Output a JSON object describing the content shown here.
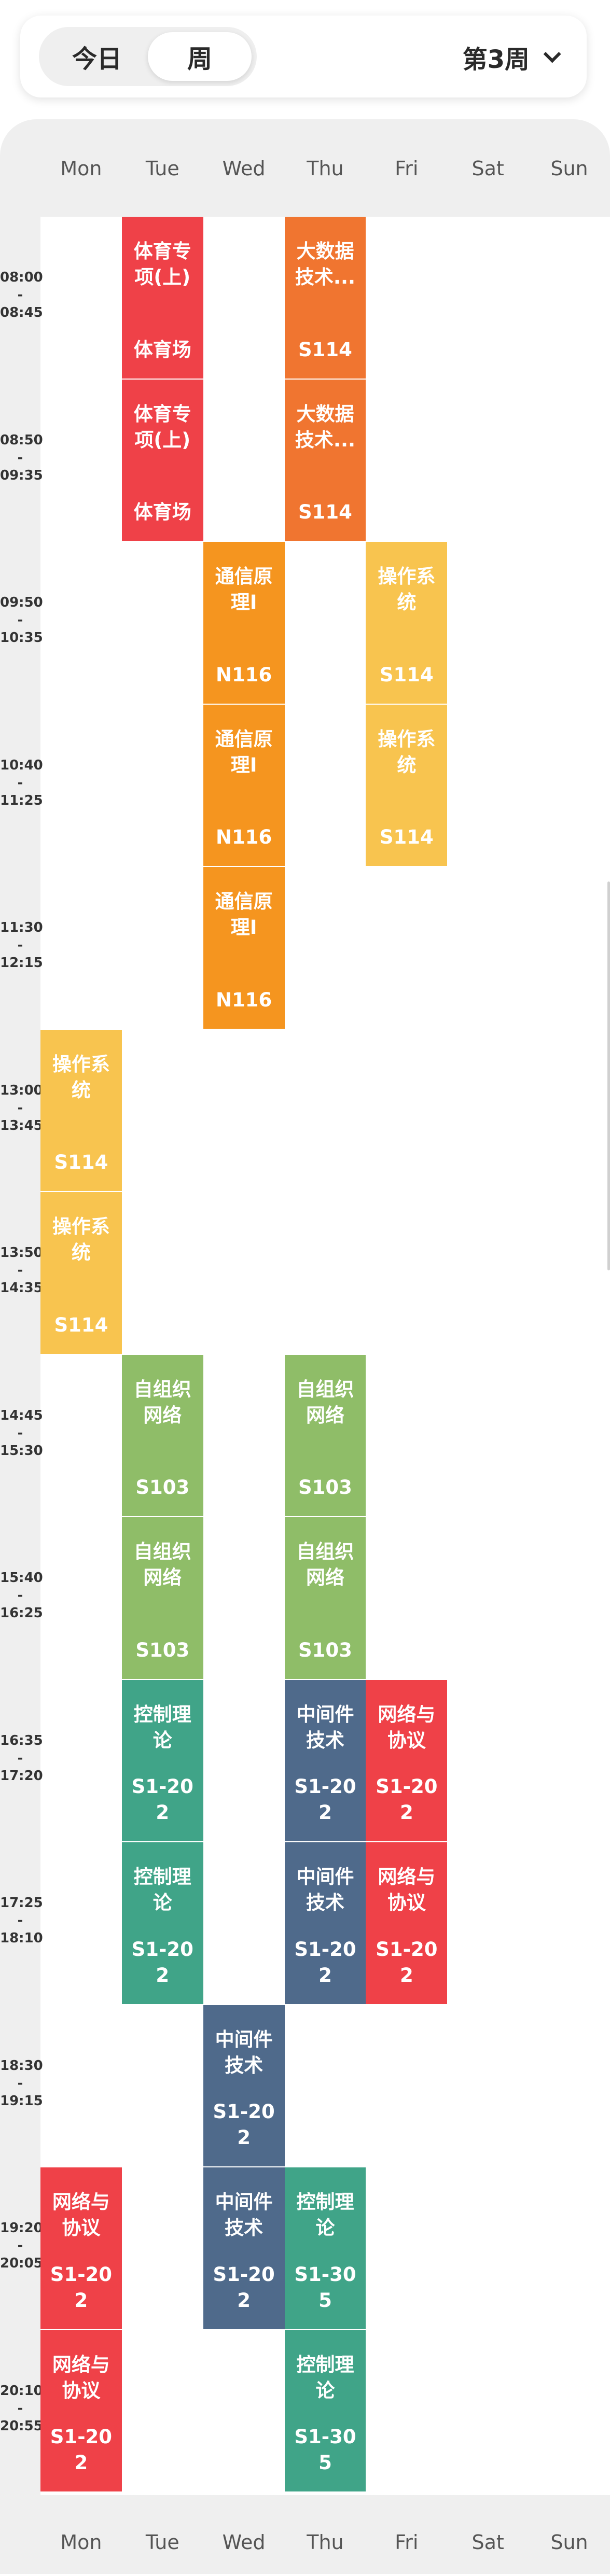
{
  "header": {
    "tab_today": "今日",
    "tab_week": "周",
    "week_label": "第3周",
    "dropdown_icon": "chevron-down-icon"
  },
  "days": [
    "Mon",
    "Tue",
    "Wed",
    "Thu",
    "Fri",
    "Sat",
    "Sun"
  ],
  "times": [
    {
      "start": "08:00",
      "end": "08:45"
    },
    {
      "start": "08:50",
      "end": "09:35"
    },
    {
      "start": "09:50",
      "end": "10:35"
    },
    {
      "start": "10:40",
      "end": "11:25"
    },
    {
      "start": "11:30",
      "end": "12:15"
    },
    {
      "start": "13:00",
      "end": "13:45"
    },
    {
      "start": "13:50",
      "end": "14:35"
    },
    {
      "start": "14:45",
      "end": "15:30"
    },
    {
      "start": "15:40",
      "end": "16:25"
    },
    {
      "start": "16:35",
      "end": "17:20"
    },
    {
      "start": "17:25",
      "end": "18:10"
    },
    {
      "start": "18:30",
      "end": "19:15"
    },
    {
      "start": "19:20",
      "end": "20:05"
    },
    {
      "start": "20:10",
      "end": "20:55"
    }
  ],
  "courses": [
    {
      "day": 1,
      "slot": 0,
      "name": "体育专项(上)",
      "room": "体育场",
      "color": "#ef4148"
    },
    {
      "day": 1,
      "slot": 1,
      "name": "体育专项(上)",
      "room": "体育场",
      "color": "#ef4148"
    },
    {
      "day": 3,
      "slot": 0,
      "name": "大数据技术...",
      "room": "S114",
      "color": "#f07530"
    },
    {
      "day": 3,
      "slot": 1,
      "name": "大数据技术...",
      "room": "S114",
      "color": "#f07530"
    },
    {
      "day": 2,
      "slot": 2,
      "name": "通信原理I",
      "room": "N116",
      "color": "#f5951f"
    },
    {
      "day": 2,
      "slot": 3,
      "name": "通信原理I",
      "room": "N116",
      "color": "#f5951f"
    },
    {
      "day": 2,
      "slot": 4,
      "name": "通信原理I",
      "room": "N116",
      "color": "#f5951f"
    },
    {
      "day": 4,
      "slot": 2,
      "name": "操作系统",
      "room": "S114",
      "color": "#f8c44f"
    },
    {
      "day": 4,
      "slot": 3,
      "name": "操作系统",
      "room": "S114",
      "color": "#f8c44f"
    },
    {
      "day": 0,
      "slot": 5,
      "name": "操作系统",
      "room": "S114",
      "color": "#f8c44f"
    },
    {
      "day": 0,
      "slot": 6,
      "name": "操作系统",
      "room": "S114",
      "color": "#f8c44f"
    },
    {
      "day": 1,
      "slot": 7,
      "name": "自组织网络",
      "room": "S103",
      "color": "#8fbd68"
    },
    {
      "day": 1,
      "slot": 8,
      "name": "自组织网络",
      "room": "S103",
      "color": "#8fbd68"
    },
    {
      "day": 3,
      "slot": 7,
      "name": "自组织网络",
      "room": "S103",
      "color": "#8fbd68"
    },
    {
      "day": 3,
      "slot": 8,
      "name": "自组织网络",
      "room": "S103",
      "color": "#8fbd68"
    },
    {
      "day": 1,
      "slot": 9,
      "name": "控制理论",
      "room": "S1-202",
      "color": "#40a488"
    },
    {
      "day": 1,
      "slot": 10,
      "name": "控制理论",
      "room": "S1-202",
      "color": "#40a488"
    },
    {
      "day": 3,
      "slot": 9,
      "name": "中间件技术",
      "room": "S1-202",
      "color": "#4f6a8b"
    },
    {
      "day": 3,
      "slot": 10,
      "name": "中间件技术",
      "room": "S1-202",
      "color": "#4f6a8b"
    },
    {
      "day": 4,
      "slot": 9,
      "name": "网络与协议",
      "room": "S1-202",
      "color": "#ef4148"
    },
    {
      "day": 4,
      "slot": 10,
      "name": "网络与协议",
      "room": "S1-202",
      "color": "#ef4148"
    },
    {
      "day": 2,
      "slot": 11,
      "name": "中间件技术",
      "room": "S1-202",
      "color": "#4f6a8b"
    },
    {
      "day": 2,
      "slot": 12,
      "name": "中间件技术",
      "room": "S1-202",
      "color": "#4f6a8b"
    },
    {
      "day": 0,
      "slot": 12,
      "name": "网络与协议",
      "room": "S1-202",
      "color": "#ef4148"
    },
    {
      "day": 0,
      "slot": 13,
      "name": "网络与协议",
      "room": "S1-202",
      "color": "#ef4148"
    },
    {
      "day": 3,
      "slot": 12,
      "name": "控制理论",
      "room": "S1-305",
      "color": "#40a488"
    },
    {
      "day": 3,
      "slot": 13,
      "name": "控制理论",
      "room": "S1-305",
      "color": "#40a488"
    }
  ]
}
